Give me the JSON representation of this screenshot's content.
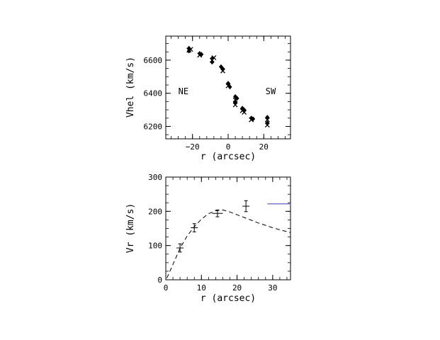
{
  "chart_data": [
    {
      "type": "scatter",
      "xlabel": "r (arcsec)",
      "ylabel": "Vhel (km/s)",
      "xlim": [
        -35,
        35
      ],
      "ylim": [
        6125,
        6745
      ],
      "xticks": [
        -20,
        0,
        20
      ],
      "xtick_labels": [
        "−20",
        "0",
        "20"
      ],
      "yticks": [
        6200,
        6400,
        6600
      ],
      "ytick_labels": [
        "6200",
        "6400",
        "6600"
      ],
      "grid": false,
      "annotations": [
        {
          "text": "NE",
          "x": -28,
          "y": 6395
        },
        {
          "text": "SW",
          "x": 21,
          "y": 6395
        }
      ],
      "series": [
        {
          "marker": "mixed",
          "points": [
            {
              "x": -22,
              "y": 6672,
              "m": "diamond"
            },
            {
              "x": -22,
              "y": 6660,
              "m": "cross"
            },
            {
              "x": -22,
              "y": 6655,
              "m": "diamond"
            },
            {
              "x": -21,
              "y": 6665,
              "m": "cross"
            },
            {
              "x": -16,
              "y": 6640,
              "m": "diamond"
            },
            {
              "x": -16,
              "y": 6630,
              "m": "cross"
            },
            {
              "x": -15,
              "y": 6635,
              "m": "diamond"
            },
            {
              "x": -9,
              "y": 6610,
              "m": "diamond"
            },
            {
              "x": -9,
              "y": 6600,
              "m": "cross"
            },
            {
              "x": -9,
              "y": 6588,
              "m": "diamond"
            },
            {
              "x": -8,
              "y": 6615,
              "m": "cross"
            },
            {
              "x": -4,
              "y": 6560,
              "m": "diamond"
            },
            {
              "x": -3,
              "y": 6548,
              "m": "diamond"
            },
            {
              "x": -3,
              "y": 6535,
              "m": "cross"
            },
            {
              "x": 0,
              "y": 6460,
              "m": "diamond"
            },
            {
              "x": 0,
              "y": 6445,
              "m": "cross"
            },
            {
              "x": 1,
              "y": 6438,
              "m": "diamond"
            },
            {
              "x": 4,
              "y": 6380,
              "m": "diamond"
            },
            {
              "x": 4,
              "y": 6360,
              "m": "cross"
            },
            {
              "x": 4,
              "y": 6345,
              "m": "diamond"
            },
            {
              "x": 4,
              "y": 6330,
              "m": "cross"
            },
            {
              "x": 5,
              "y": 6370,
              "m": "diamond"
            },
            {
              "x": 8,
              "y": 6310,
              "m": "diamond"
            },
            {
              "x": 8,
              "y": 6295,
              "m": "cross"
            },
            {
              "x": 9,
              "y": 6300,
              "m": "diamond"
            },
            {
              "x": 9,
              "y": 6285,
              "m": "cross"
            },
            {
              "x": 13,
              "y": 6250,
              "m": "diamond"
            },
            {
              "x": 13,
              "y": 6240,
              "m": "cross"
            },
            {
              "x": 14,
              "y": 6245,
              "m": "diamond"
            },
            {
              "x": 22,
              "y": 6255,
              "m": "diamond"
            },
            {
              "x": 22,
              "y": 6240,
              "m": "cross"
            },
            {
              "x": 22,
              "y": 6220,
              "m": "diamond"
            },
            {
              "x": 22,
              "y": 6208,
              "m": "cross"
            }
          ]
        }
      ]
    },
    {
      "type": "scatter",
      "xlabel": "r (arcsec)",
      "ylabel": "Vr (km/s)",
      "xlim": [
        0,
        35
      ],
      "ylim": [
        0,
        300
      ],
      "xticks": [
        0,
        10,
        20,
        30
      ],
      "xtick_labels": [
        "0",
        "10",
        "20",
        "30"
      ],
      "yticks": [
        0,
        100,
        200,
        300
      ],
      "ytick_labels": [
        "0",
        "100",
        "200",
        "300"
      ],
      "grid": false,
      "points": [
        {
          "x": 4,
          "y": 93,
          "xerr": 1,
          "yerr": 12
        },
        {
          "x": 8,
          "y": 152,
          "xerr": 1,
          "yerr": 12
        },
        {
          "x": 14.5,
          "y": 194,
          "xerr": 1.5,
          "yerr": 10
        },
        {
          "x": 22.5,
          "y": 215,
          "xerr": 1,
          "yerr": 16
        }
      ],
      "model_curve": {
        "style": "dashed",
        "x": [
          0.3,
          2,
          4,
          6,
          8,
          10,
          12,
          14,
          16,
          18,
          20,
          22,
          24,
          26,
          28,
          30,
          32,
          35
        ],
        "y": [
          5,
          45,
          92,
          128,
          155,
          177,
          193,
          202,
          204,
          198,
          190,
          182,
          174,
          166,
          159,
          152,
          146,
          138
        ]
      },
      "reference_line": {
        "color": "#7b7bd9",
        "x": [
          28.5,
          35
        ],
        "y": 222
      }
    }
  ]
}
